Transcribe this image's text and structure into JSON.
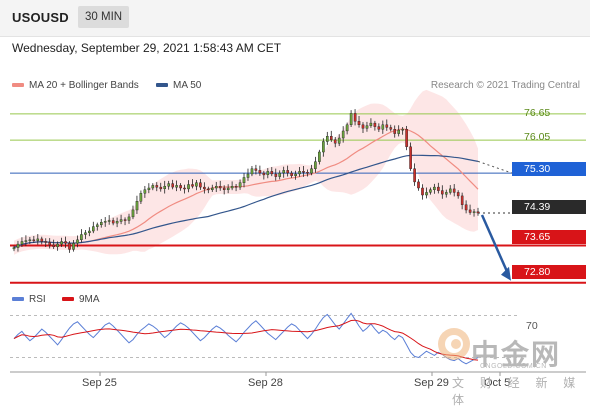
{
  "header": {
    "symbol": "USOUSD",
    "timeframe": "30 MIN",
    "datetime": "Wednesday, September 29, 2021 1:58:43 AM CET"
  },
  "legend": {
    "ma20_label": "MA 20 + Bollinger Bands",
    "ma50_label": "MA 50",
    "credit": "Research © 2021 Trading Central",
    "rsi_label": "RSI",
    "rsi_ma_label": "9MA"
  },
  "colors": {
    "ma20": "#f08c82",
    "ma50": "#33568c",
    "band_fill": "#fde2e2",
    "up_candle": "#6aa23c",
    "down_candle": "#c9302c",
    "support": "#d81418",
    "resistance_green": "#96c84c",
    "pivot": "#2f5fb8",
    "pivot_tag": "#1f62d6",
    "current_tag": "#2a2a2a",
    "rsi": "#5b7fd6",
    "rsi_ma": "#d81418",
    "arrow": "#2a5aa0"
  },
  "chart_data": [
    {
      "type": "candlestick",
      "series": [
        {
          "name": "MA 20 + Bollinger Bands"
        },
        {
          "name": "MA 50"
        }
      ],
      "x_ticks": [
        "Sep 25",
        "Sep 28",
        "Sep 29",
        "Oct 5"
      ],
      "levels": [
        {
          "value": 76.65,
          "label": "76.65",
          "kind": "resistance"
        },
        {
          "value": 76.05,
          "label": "76.05",
          "kind": "resistance"
        },
        {
          "value": 75.3,
          "label": "75.30",
          "kind": "pivot"
        },
        {
          "value": 74.39,
          "label": "74.39",
          "kind": "last"
        },
        {
          "value": 73.65,
          "label": "73.65",
          "kind": "support"
        },
        {
          "value": 72.8,
          "label": "72.80",
          "kind": "support"
        }
      ],
      "ylim": [
        72.68,
        77.08
      ],
      "projection": {
        "from": 74.39,
        "to": 72.8,
        "direction": "down"
      },
      "price_closes": [
        73.6,
        73.68,
        73.74,
        73.76,
        73.78,
        73.76,
        73.8,
        73.74,
        73.72,
        73.66,
        73.62,
        73.68,
        73.74,
        73.7,
        73.56,
        73.7,
        73.78,
        73.9,
        73.94,
        73.98,
        74.08,
        74.12,
        74.18,
        74.2,
        74.22,
        74.16,
        74.2,
        74.24,
        74.22,
        74.3,
        74.46,
        74.66,
        74.84,
        74.92,
        74.96,
        75.02,
        74.98,
        74.94,
        75.0,
        75.06,
        74.98,
        75.02,
        74.96,
        74.94,
        75.04,
        75.0,
        75.08,
        74.98,
        74.94,
        74.92,
        74.96,
        75.0,
        74.96,
        74.92,
        74.96,
        75.0,
        74.98,
        75.08,
        75.2,
        75.28,
        75.4,
        75.36,
        75.3,
        75.26,
        75.34,
        75.28,
        75.22,
        75.3,
        75.36,
        75.3,
        75.24,
        75.28,
        75.34,
        75.32,
        75.3,
        75.4,
        75.56,
        75.78,
        76.02,
        76.14,
        76.06,
        75.98,
        76.1,
        76.26,
        76.4,
        76.66,
        76.48,
        76.4,
        76.32,
        76.38,
        76.44,
        76.36,
        76.3,
        76.4,
        76.34,
        76.3,
        76.2,
        76.28,
        76.3,
        75.9,
        75.4,
        75.1,
        74.96,
        74.8,
        74.86,
        74.92,
        74.98,
        74.9,
        74.82,
        74.86,
        74.94,
        74.86,
        74.78,
        74.58,
        74.46,
        74.4,
        74.42,
        74.39
      ]
    },
    {
      "type": "line",
      "title": "RSI",
      "series": [
        {
          "name": "RSI"
        },
        {
          "name": "9MA"
        }
      ],
      "y_ticks": [
        70
      ],
      "ylim": [
        20,
        80
      ],
      "rsi_values": [
        48,
        52,
        55,
        50,
        46,
        49,
        53,
        57,
        54,
        50,
        46,
        42,
        47,
        53,
        58,
        62,
        64,
        60,
        56,
        52,
        49,
        53,
        57,
        61,
        63,
        60,
        56,
        52,
        48,
        44,
        47,
        52,
        56,
        59,
        62,
        60,
        57,
        53,
        49,
        52,
        56,
        60,
        63,
        61,
        58,
        54,
        50,
        46,
        49,
        53,
        57,
        60,
        58,
        55,
        51,
        48,
        45,
        49,
        54,
        58,
        62,
        65,
        61,
        57,
        53,
        50,
        47,
        51,
        55,
        59,
        62,
        60,
        56,
        52,
        48,
        52,
        57,
        63,
        68,
        71,
        66,
        61,
        57,
        62,
        67,
        72,
        66,
        60,
        55,
        58,
        62,
        57,
        53,
        56,
        54,
        50,
        47,
        51,
        49,
        42,
        35,
        31,
        30,
        33,
        36,
        34,
        32,
        35,
        33,
        30,
        28,
        27,
        29,
        26,
        24,
        26,
        28,
        30
      ]
    }
  ],
  "watermark": {
    "brand_cn": "中金网",
    "url": "CNGOLD.COM.CN",
    "sub_cn": "文 财 经 新 媒 体"
  }
}
